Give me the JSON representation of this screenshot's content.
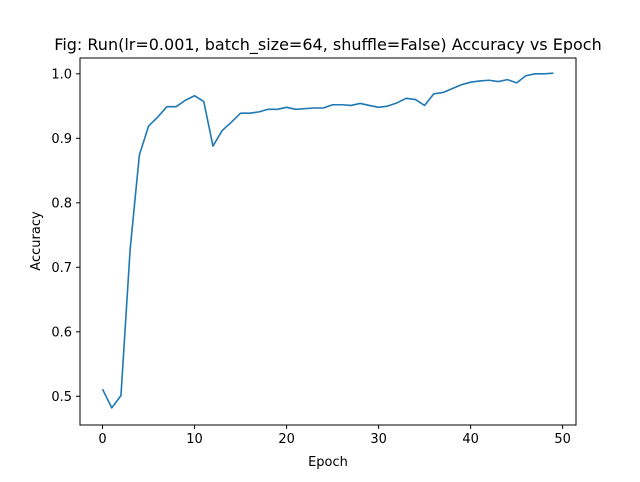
{
  "chart_data": {
    "type": "line",
    "title": "Fig: Run(lr=0.001, batch_size=64, shuffle=False) Accuracy vs Epoch",
    "xlabel": "Epoch",
    "ylabel": "Accuracy",
    "xlim": [
      -2.45,
      51.45
    ],
    "ylim": [
      0.4555,
      1.0245
    ],
    "xticks": [
      0,
      10,
      20,
      30,
      40,
      50
    ],
    "yticks": [
      0.5,
      0.6,
      0.7,
      0.8,
      0.9,
      1.0
    ],
    "xtick_labels": [
      "0",
      "10",
      "20",
      "30",
      "40",
      "50"
    ],
    "ytick_labels": [
      "0.5",
      "0.6",
      "0.7",
      "0.8",
      "0.9",
      "1.0"
    ],
    "grid": false,
    "legend": "none",
    "series": [
      {
        "color": "#1f77b4",
        "x": [
          0,
          1,
          2,
          3,
          4,
          5,
          6,
          7,
          8,
          9,
          10,
          11,
          12,
          13,
          14,
          15,
          16,
          17,
          18,
          19,
          20,
          21,
          22,
          23,
          24,
          25,
          26,
          27,
          28,
          29,
          30,
          31,
          32,
          33,
          34,
          35,
          36,
          37,
          38,
          39,
          40,
          41,
          42,
          43,
          44,
          45,
          46,
          47,
          48,
          49
        ],
        "values": [
          0.511,
          0.482,
          0.501,
          0.728,
          0.874,
          0.919,
          0.933,
          0.949,
          0.949,
          0.959,
          0.966,
          0.957,
          0.888,
          0.912,
          0.925,
          0.939,
          0.939,
          0.941,
          0.945,
          0.945,
          0.948,
          0.945,
          0.946,
          0.947,
          0.947,
          0.952,
          0.952,
          0.951,
          0.954,
          0.951,
          0.948,
          0.95,
          0.955,
          0.962,
          0.96,
          0.951,
          0.969,
          0.971,
          0.977,
          0.983,
          0.987,
          0.989,
          0.99,
          0.988,
          0.991,
          0.986,
          0.997,
          1.0,
          1.0,
          1.001
        ]
      }
    ]
  }
}
